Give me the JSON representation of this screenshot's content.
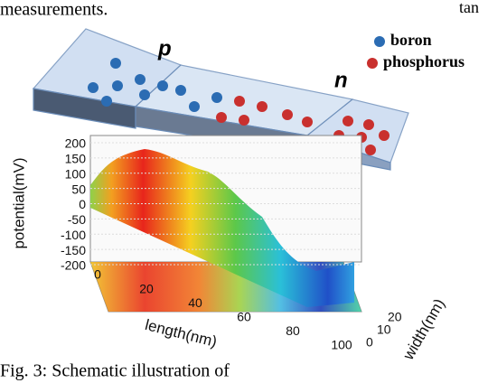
{
  "header_text": "measurements.",
  "top_right_text": "tan",
  "legend": [
    {
      "label": "boron",
      "color": "#2b6cb3"
    },
    {
      "label": "phosphorus",
      "color": "#c9302e"
    }
  ],
  "regions": {
    "p": "p",
    "n": "n"
  },
  "plot": {
    "y_label": "potential(mV)",
    "y_ticks": [
      "200",
      "150",
      "100",
      "50",
      "0",
      "-50",
      "-100",
      "-150",
      "-200"
    ],
    "x_label": "length(nm)",
    "x_ticks": [
      "0",
      "20",
      "40",
      "60",
      "80",
      "100"
    ],
    "z_label": "width(nm)",
    "z_ticks": [
      "0",
      "10",
      "20"
    ]
  },
  "caption": "Fig. 3: Schematic illustration of"
}
